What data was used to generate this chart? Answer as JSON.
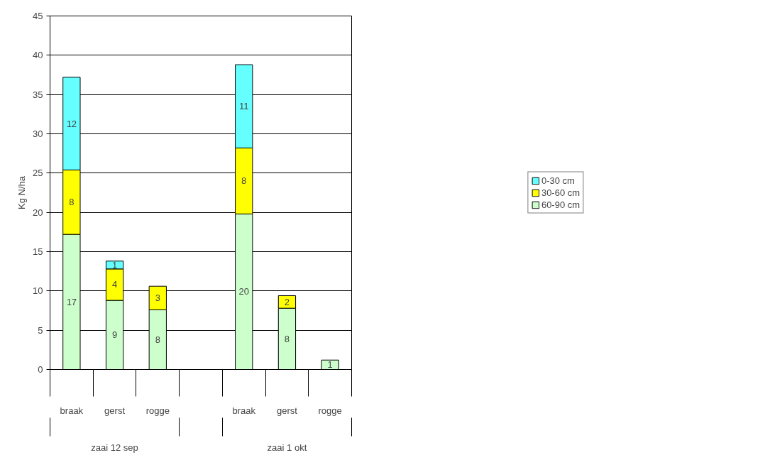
{
  "chart_data": {
    "type": "bar",
    "stacked": true,
    "ylabel": "Kg N/ha",
    "categories": [
      "braak",
      "gerst",
      "rogge",
      null,
      "braak",
      "gerst",
      "rogge"
    ],
    "annotations": [
      "zaai 12 sep",
      "zaai 1 okt"
    ],
    "series": [
      {
        "name": "60-90 cm",
        "color": "#ccffcc",
        "values": [
          17.2,
          8.8,
          7.6,
          null,
          19.8,
          7.8,
          1.2
        ],
        "value_labels": [
          "17",
          "9",
          "8",
          null,
          "20",
          "8",
          "1"
        ]
      },
      {
        "name": "30-60 cm",
        "color": "#ffff00",
        "values": [
          8.2,
          4.0,
          3.0,
          null,
          8.4,
          1.6,
          null
        ],
        "value_labels": [
          "8",
          "4",
          "3",
          null,
          "8",
          "2",
          null
        ]
      },
      {
        "name": "0-30 cm",
        "color": "#66ffff",
        "values": [
          11.8,
          1.0,
          null,
          null,
          10.6,
          null,
          null
        ],
        "value_labels": [
          "12",
          "1",
          null,
          null,
          "11",
          null,
          null
        ]
      }
    ],
    "ylim": [
      0,
      45
    ],
    "yticks": [
      0,
      5,
      10,
      15,
      20,
      25,
      30,
      35,
      40,
      45
    ],
    "grid": "y",
    "legend": "right"
  }
}
